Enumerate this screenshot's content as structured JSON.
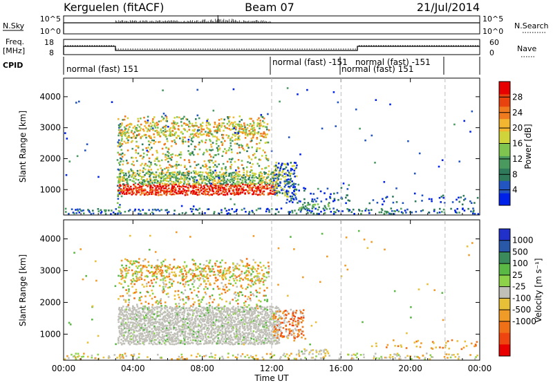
{
  "header": {
    "station": "Kerguelen (fitACF)",
    "beam": "Beam 07",
    "date": "21/Jul/2014"
  },
  "strip_labels": {
    "nsky": "N.Sky",
    "nsearch": "N.Search",
    "nsky_ticks": [
      "10^5",
      "10^0"
    ],
    "nsearch_ticks": [
      "10^5",
      "10^0"
    ],
    "freq": "Freq.",
    "freq_unit": "[MHz]",
    "freq_ticks": [
      "18",
      "8"
    ],
    "nave": "Nave",
    "nave_ticks": [
      "60",
      "0"
    ],
    "cpid": "CPID"
  },
  "cpid_segments": [
    {
      "label": "normal (fast) 151",
      "start_hour": 0
    },
    {
      "label": "normal (fast) -151",
      "start_hour": 12
    },
    {
      "label": "normal (fast) 151",
      "start_hour": 16
    },
    {
      "label": "normal (fast) -151",
      "start_hour": 17
    }
  ],
  "chart_data": [
    {
      "type": "heatmap",
      "name": "power-panel",
      "ylabel": "Slant Range [km]",
      "xlabel": "",
      "xlim_hours": [
        0,
        24
      ],
      "ylim": [
        180,
        4600
      ],
      "x_ticks": [],
      "y_ticks": [
        "1000",
        "2000",
        "3000",
        "4000"
      ],
      "y_tick_values": [
        1000,
        2000,
        3000,
        4000
      ],
      "colorbar": {
        "label": "Power [dB]",
        "tick_labels": [
          "4",
          "8",
          "12",
          "16",
          "20",
          "24",
          "28"
        ],
        "tick_values": [
          4,
          8,
          12,
          16,
          20,
          24,
          28
        ],
        "range": [
          0,
          32
        ],
        "colors": [
          "#0022e8",
          "#2255c0",
          "#2f7a5a",
          "#4a9a60",
          "#7fc44e",
          "#cfd43a",
          "#f2b631",
          "#f07a1e",
          "#e8420f",
          "#e60000"
        ]
      }
    },
    {
      "type": "heatmap",
      "name": "velocity-panel",
      "ylabel": "Slant Range [km]",
      "xlabel": "Time UT",
      "xlim_hours": [
        0,
        24
      ],
      "ylim": [
        180,
        4600
      ],
      "x_ticks": [
        "00:00",
        "04:00",
        "08:00",
        "12:00",
        "16:00",
        "20:00",
        "00:00"
      ],
      "x_tick_hours": [
        0,
        4,
        8,
        12,
        16,
        20,
        24
      ],
      "y_ticks": [
        "1000",
        "2000",
        "3000",
        "4000"
      ],
      "y_tick_values": [
        1000,
        2000,
        3000,
        4000
      ],
      "colorbar": {
        "label": "Velocity [m s⁻¹]",
        "tick_labels": [
          "1000",
          "500",
          "100",
          "25",
          "-25",
          "-100",
          "-500",
          "-1000"
        ],
        "colors": [
          "#2030c8",
          "#2a58a8",
          "#3a8a5c",
          "#5ab844",
          "#8ed24a",
          "#c0c0b8",
          "#e8c038",
          "#f09a28",
          "#f07018",
          "#ee4410",
          "#e80000"
        ]
      }
    }
  ]
}
